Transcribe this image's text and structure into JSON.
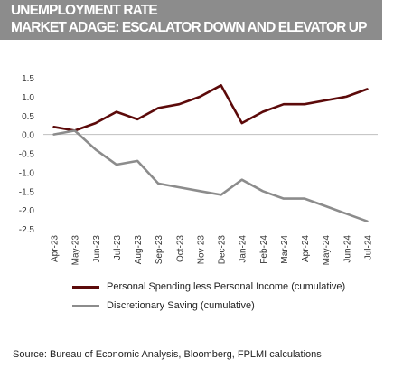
{
  "title": {
    "line1": "UNEMPLOYMENT RATE",
    "line2": "MARKET ADAGE: ESCALATOR DOWN AND ELEVATOR UP"
  },
  "source": "Source:  Bureau of Economic Analysis, Bloomberg, FPLMI calculations",
  "colors": {
    "title_background": "#8c8c8c",
    "series1": "#5c0a0a",
    "series2": "#8c8c8c"
  },
  "chart_data": {
    "type": "line",
    "categories": [
      "Apr-23",
      "May-23",
      "Jun-23",
      "Jul-23",
      "Aug-23",
      "Sep-23",
      "Oct-23",
      "Nov-23",
      "Dec-23",
      "Jan-24",
      "Feb-24",
      "Mar-24",
      "Apr-24",
      "May-24",
      "Jun-24",
      "Jul-24"
    ],
    "series": [
      {
        "name": "Personal Spending less Personal Income (cumulative)",
        "values": [
          0.2,
          0.1,
          0.3,
          0.6,
          0.4,
          0.7,
          0.8,
          1.0,
          1.3,
          0.3,
          0.6,
          0.8,
          0.8,
          0.9,
          1.0,
          1.2
        ]
      },
      {
        "name": "Discretionary Saving (cumulative)",
        "values": [
          0.0,
          0.1,
          -0.4,
          -0.8,
          -0.7,
          -1.3,
          -1.4,
          -1.5,
          -1.6,
          -1.2,
          -1.5,
          -1.7,
          -1.7,
          -1.9,
          -2.1,
          -2.3
        ]
      }
    ],
    "yticks": [
      "1.5",
      "1.0",
      "0.5",
      "0.0",
      "-0.5",
      "-1.0",
      "-1.5",
      "-2.0",
      "-2.5"
    ],
    "ylim": [
      -2.5,
      1.5
    ],
    "grid": false,
    "legend": "bottom"
  }
}
